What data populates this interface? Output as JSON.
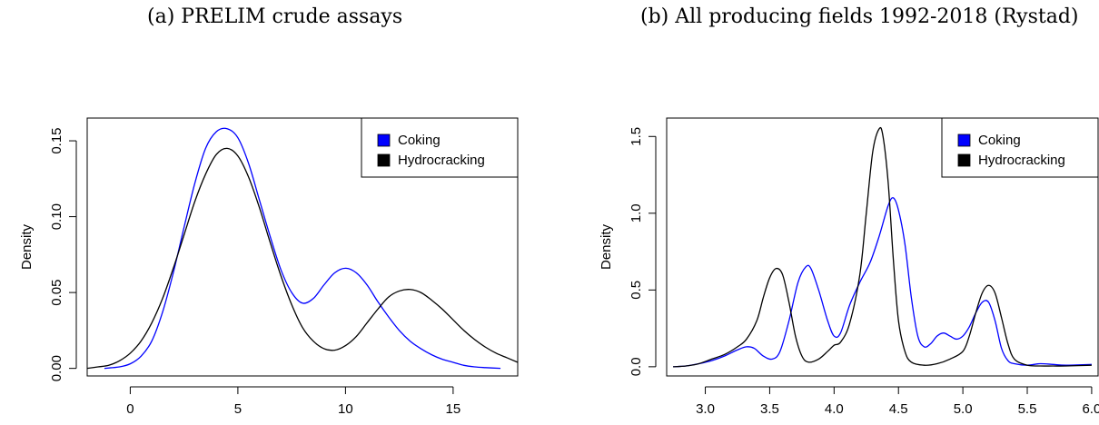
{
  "captions": {
    "a": "(a) PRELIM crude assays",
    "b": "(b) All producing fields 1992-2018 (Rystad)"
  },
  "colors": {
    "coking": "#0000ff",
    "hydrocracking": "#000000"
  },
  "chart_data": [
    {
      "type": "line",
      "title": "(a) PRELIM crude assays",
      "xlabel": "",
      "ylabel": "Density",
      "xlim": [
        -2,
        18
      ],
      "ylim": [
        -0.005,
        0.165
      ],
      "xticks": [
        0,
        5,
        10,
        15
      ],
      "xtick_labels": [
        "0",
        "5",
        "10",
        "15"
      ],
      "yticks": [
        0.0,
        0.05,
        0.1,
        0.15
      ],
      "ytick_labels": [
        "0.00",
        "0.05",
        "0.10",
        "0.15"
      ],
      "grid": false,
      "legend_position": "top-right",
      "series": [
        {
          "name": "Coking",
          "color": "#0000ff",
          "x": [
            -1.2,
            -0.5,
            0,
            0.5,
            1,
            1.5,
            2,
            2.5,
            3,
            3.5,
            4,
            4.5,
            5,
            5.5,
            6,
            6.5,
            7,
            7.5,
            8,
            8.5,
            9,
            9.5,
            10,
            10.5,
            11,
            11.5,
            12,
            12.5,
            13,
            13.5,
            14,
            14.5,
            15,
            15.5,
            16,
            16.5,
            17.2
          ],
          "y": [
            0.0,
            0.001,
            0.003,
            0.008,
            0.018,
            0.037,
            0.063,
            0.093,
            0.122,
            0.145,
            0.156,
            0.158,
            0.152,
            0.135,
            0.111,
            0.087,
            0.065,
            0.05,
            0.043,
            0.046,
            0.055,
            0.063,
            0.066,
            0.063,
            0.055,
            0.044,
            0.034,
            0.025,
            0.018,
            0.013,
            0.009,
            0.006,
            0.004,
            0.002,
            0.001,
            0.0005,
            0.0
          ]
        },
        {
          "name": "Hydrocracking",
          "color": "#000000",
          "x": [
            -2,
            -1.5,
            -1,
            -0.5,
            0,
            0.5,
            1,
            1.5,
            2,
            2.5,
            3,
            3.5,
            4,
            4.5,
            5,
            5.5,
            6,
            6.5,
            7,
            7.5,
            8,
            8.5,
            9,
            9.5,
            10,
            10.5,
            11,
            11.5,
            12,
            12.5,
            13,
            13.5,
            14,
            14.5,
            15,
            15.5,
            16,
            16.5,
            17,
            17.5,
            18
          ],
          "y": [
            0.0,
            0.001,
            0.002,
            0.005,
            0.01,
            0.018,
            0.03,
            0.046,
            0.066,
            0.088,
            0.11,
            0.128,
            0.141,
            0.145,
            0.14,
            0.126,
            0.106,
            0.083,
            0.061,
            0.042,
            0.027,
            0.018,
            0.013,
            0.012,
            0.015,
            0.021,
            0.03,
            0.039,
            0.047,
            0.051,
            0.052,
            0.05,
            0.045,
            0.039,
            0.032,
            0.025,
            0.019,
            0.014,
            0.01,
            0.007,
            0.004
          ]
        }
      ]
    },
    {
      "type": "line",
      "title": "(b) All producing fields 1992-2018 (Rystad)",
      "xlabel": "",
      "ylabel": "Density",
      "xlim": [
        2.7,
        6.05
      ],
      "ylim": [
        -0.06,
        1.62
      ],
      "xticks": [
        3.0,
        3.5,
        4.0,
        4.5,
        5.0,
        5.5,
        6.0
      ],
      "xtick_labels": [
        "3.0",
        "3.5",
        "4.0",
        "4.5",
        "5.0",
        "5.5",
        "6.0"
      ],
      "yticks": [
        0.0,
        0.5,
        1.0,
        1.5
      ],
      "ytick_labels": [
        "0.0",
        "0.5",
        "1.0",
        "1.5"
      ],
      "grid": false,
      "legend_position": "top-right",
      "series": [
        {
          "name": "Coking",
          "color": "#0000ff",
          "x": [
            2.75,
            2.85,
            2.95,
            3.05,
            3.15,
            3.25,
            3.32,
            3.38,
            3.45,
            3.52,
            3.58,
            3.65,
            3.72,
            3.78,
            3.82,
            3.88,
            3.95,
            4.0,
            4.05,
            4.12,
            4.2,
            4.28,
            4.35,
            4.42,
            4.46,
            4.5,
            4.55,
            4.6,
            4.65,
            4.7,
            4.75,
            4.8,
            4.85,
            4.9,
            4.95,
            5.0,
            5.05,
            5.1,
            5.15,
            5.2,
            5.25,
            5.3,
            5.35,
            5.4,
            5.5,
            5.6,
            5.7,
            5.8,
            6.0
          ],
          "y": [
            0.0,
            0.005,
            0.02,
            0.04,
            0.07,
            0.11,
            0.13,
            0.12,
            0.07,
            0.05,
            0.1,
            0.3,
            0.55,
            0.65,
            0.64,
            0.5,
            0.3,
            0.2,
            0.22,
            0.4,
            0.55,
            0.68,
            0.85,
            1.05,
            1.1,
            1.02,
            0.8,
            0.45,
            0.2,
            0.13,
            0.15,
            0.2,
            0.22,
            0.2,
            0.18,
            0.2,
            0.26,
            0.35,
            0.42,
            0.42,
            0.3,
            0.12,
            0.04,
            0.02,
            0.01,
            0.02,
            0.015,
            0.01,
            0.015
          ]
        },
        {
          "name": "Hydrocracking",
          "color": "#000000",
          "x": [
            2.75,
            2.85,
            2.95,
            3.05,
            3.15,
            3.25,
            3.32,
            3.4,
            3.45,
            3.5,
            3.55,
            3.6,
            3.65,
            3.7,
            3.75,
            3.8,
            3.88,
            3.95,
            4.0,
            4.05,
            4.12,
            4.2,
            4.25,
            4.3,
            4.35,
            4.38,
            4.42,
            4.46,
            4.5,
            4.55,
            4.6,
            4.7,
            4.8,
            4.9,
            5.0,
            5.05,
            5.1,
            5.15,
            5.2,
            5.25,
            5.3,
            5.35,
            5.4,
            5.5,
            5.6,
            5.7,
            5.8,
            6.0
          ],
          "y": [
            0.0,
            0.005,
            0.02,
            0.05,
            0.08,
            0.13,
            0.18,
            0.3,
            0.45,
            0.58,
            0.64,
            0.6,
            0.42,
            0.2,
            0.07,
            0.03,
            0.05,
            0.1,
            0.14,
            0.16,
            0.28,
            0.6,
            1.0,
            1.4,
            1.55,
            1.5,
            1.2,
            0.7,
            0.3,
            0.1,
            0.03,
            0.01,
            0.02,
            0.05,
            0.1,
            0.2,
            0.35,
            0.48,
            0.53,
            0.48,
            0.32,
            0.15,
            0.05,
            0.01,
            0.005,
            0.005,
            0.005,
            0.01
          ]
        }
      ]
    }
  ]
}
